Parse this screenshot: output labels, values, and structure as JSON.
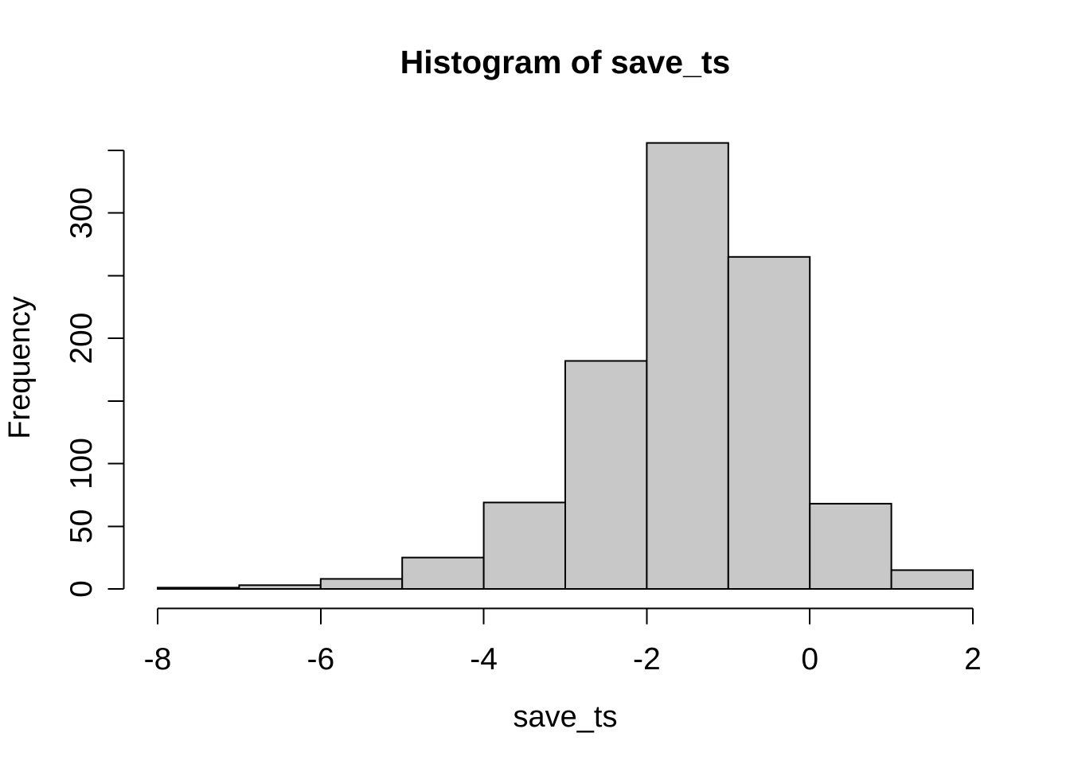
{
  "figure": {
    "background": "#ffffff"
  },
  "chart_data": {
    "type": "bar",
    "subtype": "histogram",
    "title": "Histogram of save_ts",
    "xlabel": "save_ts",
    "ylabel": "Frequency",
    "bin_breaks": [
      -8,
      -7,
      -6,
      -5,
      -4,
      -3,
      -2,
      -1,
      0,
      1,
      2
    ],
    "counts": [
      1,
      3,
      8,
      25,
      69,
      182,
      356,
      265,
      68,
      15
    ],
    "x_ticks": [
      -8,
      -6,
      -4,
      -2,
      0,
      2
    ],
    "y_ticks": [
      0,
      50,
      100,
      150,
      200,
      250,
      300,
      350
    ],
    "y_tick_labels_shown": [
      0,
      50,
      100,
      200,
      300
    ],
    "xlim": [
      -8,
      2
    ],
    "ylim": [
      0,
      350
    ],
    "grid": false,
    "legend": "none",
    "bar_fill": "#c8c8c8",
    "bar_stroke": "#000000",
    "axis_color": "#000000"
  }
}
